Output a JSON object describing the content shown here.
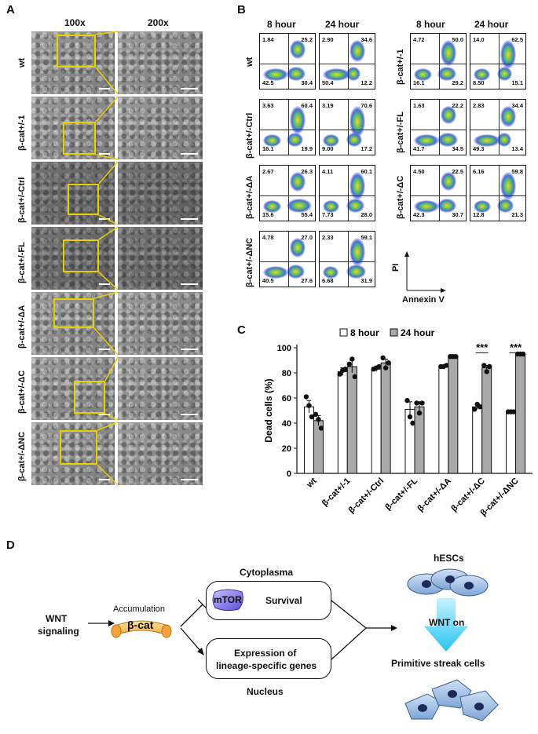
{
  "panels": {
    "a": "A",
    "b": "B",
    "c": "C",
    "d": "D"
  },
  "panelA": {
    "col_headers": [
      "100x",
      "200x"
    ],
    "rows": [
      "wt",
      "β-cat+/-1",
      "β-cat+/-Ctrl",
      "β-cat+/-FL",
      "β-cat+/-ΔA",
      "β-cat+/-ΔC",
      "β-cat+/-ΔNC"
    ]
  },
  "panelB": {
    "col_headers": [
      "8 hour",
      "24 hour",
      "8 hour",
      "24 hour"
    ],
    "left_rows": [
      "wt",
      "β-cat+/-Ctrl",
      "β-cat+/-ΔA",
      "β-cat+/-ΔNC"
    ],
    "right_rows": [
      "β-cat+/-1",
      "β-cat+/-FL",
      "β-cat+/-ΔC"
    ],
    "plots": [
      {
        "tl": "1.84",
        "tr": "25.2",
        "bl": "42.5",
        "br": "30.4"
      },
      {
        "tl": "2.90",
        "tr": "34.6",
        "bl": "50.4",
        "br": "12.2"
      },
      {
        "tl": "4.72",
        "tr": "50.0",
        "bl": "16.1",
        "br": "29.2"
      },
      {
        "tl": "14.0",
        "tr": "62.5",
        "bl": "8.50",
        "br": "15.1"
      },
      {
        "tl": "3.63",
        "tr": "60.4",
        "bl": "16.1",
        "br": "19.9"
      },
      {
        "tl": "3.19",
        "tr": "70.6",
        "bl": "9.00",
        "br": "17.2"
      },
      {
        "tl": "1.63",
        "tr": "22.2",
        "bl": "41.7",
        "br": "34.5"
      },
      {
        "tl": "2.83",
        "tr": "34.4",
        "bl": "49.3",
        "br": "13.4"
      },
      {
        "tl": "2.67",
        "tr": "26.3",
        "bl": "15.6",
        "br": "55.4"
      },
      {
        "tl": "4.11",
        "tr": "60.1",
        "bl": "7.73",
        "br": "28.0"
      },
      {
        "tl": "4.50",
        "tr": "22.5",
        "bl": "42.3",
        "br": "30.7"
      },
      {
        "tl": "6.16",
        "tr": "59.8",
        "bl": "12.8",
        "br": "21.3"
      },
      {
        "tl": "4.78",
        "tr": "27.0",
        "bl": "40.5",
        "br": "27.6"
      },
      {
        "tl": "2.33",
        "tr": "59.1",
        "bl": "6.68",
        "br": "31.9"
      }
    ],
    "axis_y": "PI",
    "axis_x": "Annexin V"
  },
  "chart_data": {
    "type": "bar",
    "ylabel": "Dead cells (%)",
    "ylim": [
      0,
      100
    ],
    "yticks": [
      0,
      20,
      40,
      60,
      80,
      100
    ],
    "categories": [
      "wt",
      "β-cat+/-1",
      "β-cat+/-Ctrl",
      "β-cat+/-FL",
      "β-cat+/-ΔA",
      "β-cat+/-ΔC",
      "β-cat+/-ΔNC"
    ],
    "legend_position": "top",
    "series": [
      {
        "name": "8 hour",
        "color": "#ffffff",
        "values": [
          53,
          81,
          83,
          51,
          85,
          53,
          49
        ],
        "points": [
          [
            61,
            54,
            45
          ],
          [
            79,
            82,
            83
          ],
          [
            83,
            84,
            85
          ],
          [
            58,
            45,
            40
          ],
          [
            85,
            85,
            86
          ],
          [
            51,
            55,
            53
          ],
          [
            49,
            49,
            49
          ]
        ]
      },
      {
        "name": "24 hour",
        "color": "#a9a9a9",
        "values": [
          42,
          85,
          88,
          53,
          93,
          84,
          95
        ],
        "points": [
          [
            47,
            43,
            36
          ],
          [
            87,
            91,
            77
          ],
          [
            92,
            84,
            88
          ],
          [
            56,
            48,
            56
          ],
          [
            93,
            93,
            93
          ],
          [
            86,
            81,
            85
          ],
          [
            95,
            95,
            95
          ]
        ]
      }
    ],
    "errors8": [
      5,
      3,
      2,
      6,
      0.5,
      2,
      0.5
    ],
    "errors24": [
      4,
      5,
      3,
      4,
      0.5,
      2,
      0.5
    ],
    "significance": [
      {
        "category": "β-cat+/-ΔC",
        "label": "***"
      },
      {
        "category": "β-cat+/-ΔNC",
        "label": "***"
      }
    ]
  },
  "panelD": {
    "cytoplasma": "Cytoplasma",
    "nucleus": "Nucleus",
    "mtor": "mTOR",
    "survival": "Survival",
    "expression_line1": "Expression of",
    "expression_line2": "lineage-specific genes",
    "wnt_line1": "WNT",
    "wnt_line2": "signaling",
    "accumulation": "Accumulation",
    "bcat": "β-cat",
    "hescs": "hESCs",
    "wnt_on": "WNT on",
    "primitive": "Primitive streak cells"
  }
}
